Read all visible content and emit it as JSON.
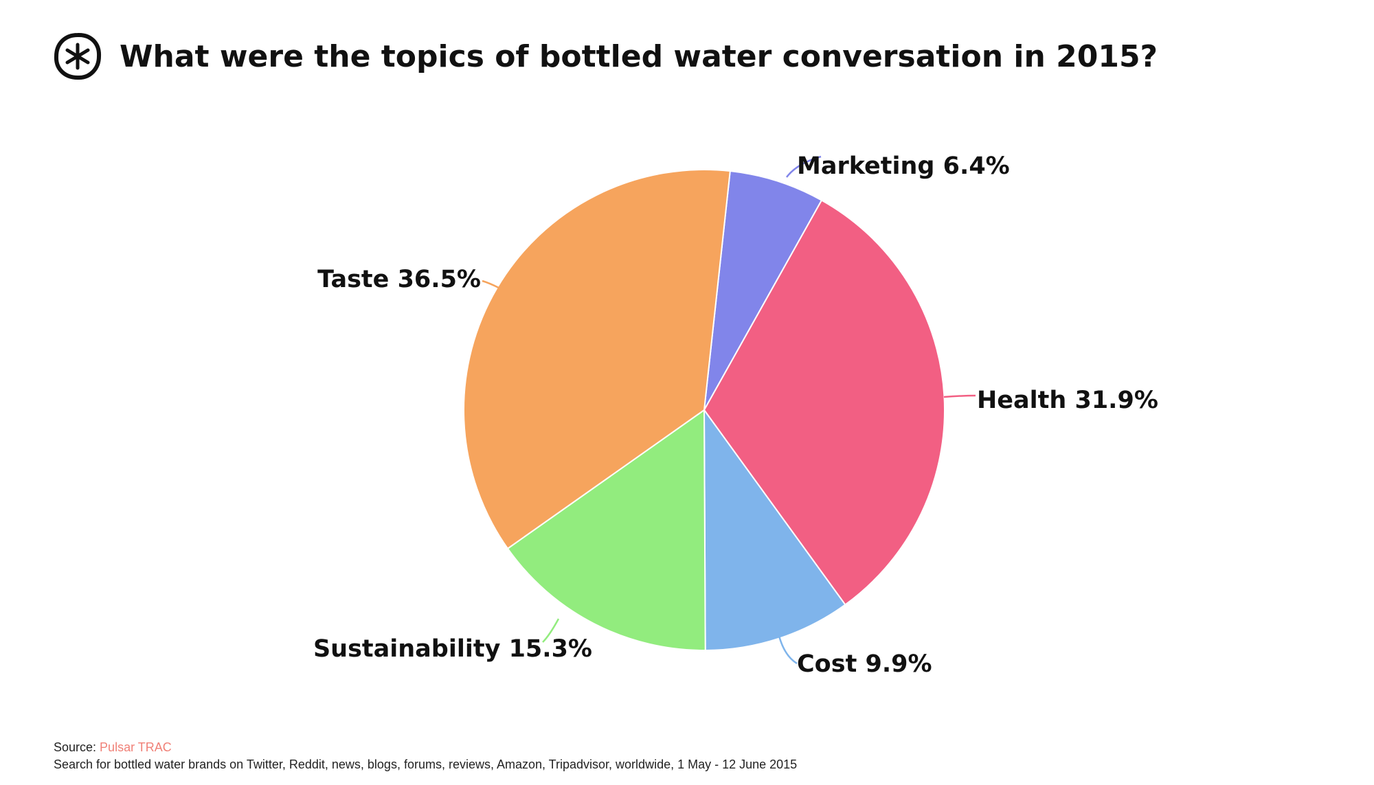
{
  "header": {
    "title": "What were the topics of bottled water conversation in 2015?",
    "logo_icon": "asterisk-circle-logo"
  },
  "chart_data": {
    "type": "pie",
    "title": "What were the topics of bottled water conversation in 2015?",
    "start_angle_deg": 6.2,
    "direction": "clockwise",
    "slices": [
      {
        "label": "Marketing",
        "value": 6.4,
        "display": "Marketing 6.4%",
        "color": "#8185ea"
      },
      {
        "label": "Health",
        "value": 31.9,
        "display": "Health 31.9%",
        "color": "#f25f83"
      },
      {
        "label": "Cost",
        "value": 9.9,
        "display": "Cost 9.9%",
        "color": "#7fb4eb"
      },
      {
        "label": "Sustainability",
        "value": 15.3,
        "display": "Sustainability 15.3%",
        "color": "#92ec7e"
      },
      {
        "label": "Taste",
        "value": 36.5,
        "display": "Taste 36.5%",
        "color": "#f6a45d"
      }
    ]
  },
  "footer": {
    "source_prefix": "Source: ",
    "source_name": "Pulsar TRAC",
    "note": "Search for bottled water brands on Twitter, Reddit, news, blogs, forums, reviews, Amazon, Tripadvisor, worldwide, 1 May - 12 June 2015"
  }
}
